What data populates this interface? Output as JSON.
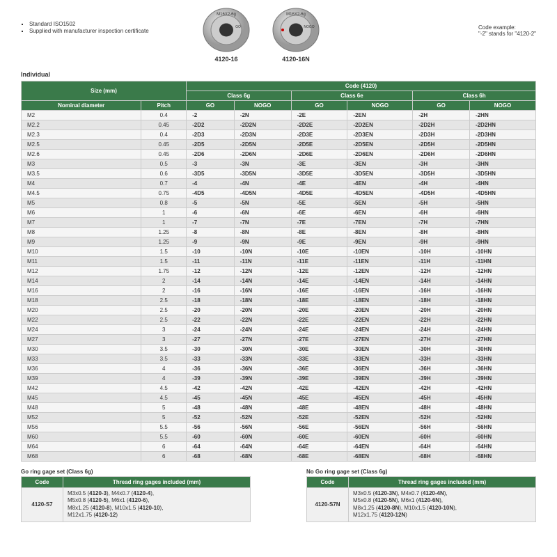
{
  "notes": [
    "Standard ISO1502",
    "Supplied with manufacturer inspection certificate"
  ],
  "gauges": [
    {
      "top": "M16X2-6g",
      "side": "GO",
      "label": "4120-16"
    },
    {
      "top": "M16X2-6g",
      "side": "NOGO",
      "label": "4120-16N"
    }
  ],
  "code_example": {
    "line1": "Code example:",
    "line2": "\"-2\" stands for \"4120-2\""
  },
  "section_title": "Individual",
  "header": {
    "size": "Size (mm)",
    "code": "Code (4120)",
    "classes": [
      "Class 6g",
      "Class 6e",
      "Class 6h"
    ],
    "nominal": "Nominal diameter",
    "pitch": "Pitch",
    "go": "GO",
    "nogo": "NOGO"
  },
  "colors": {
    "header_bg": "#3a7a4a",
    "header_fg": "#ffffff"
  },
  "rows": [
    [
      "M2",
      "0.4",
      "-2",
      "-2N",
      "-2E",
      "-2EN",
      "-2H",
      "-2HN"
    ],
    [
      "M2.2",
      "0.45",
      "-2D2",
      "-2D2N",
      "-2D2E",
      "-2D2EN",
      "-2D2H",
      "-2D2HN"
    ],
    [
      "M2.3",
      "0.4",
      "-2D3",
      "-2D3N",
      "-2D3E",
      "-2D3EN",
      "-2D3H",
      "-2D3HN"
    ],
    [
      "M2.5",
      "0.45",
      "-2D5",
      "-2D5N",
      "-2D5E",
      "-2D5EN",
      "-2D5H",
      "-2D5HN"
    ],
    [
      "M2.6",
      "0.45",
      "-2D6",
      "-2D6N",
      "-2D6E",
      "-2D6EN",
      "-2D6H",
      "-2D6HN"
    ],
    [
      "M3",
      "0.5",
      "-3",
      "-3N",
      "-3E",
      "-3EN",
      "-3H",
      "-3HN"
    ],
    [
      "M3.5",
      "0.6",
      "-3D5",
      "-3D5N",
      "-3D5E",
      "-3D5EN",
      "-3D5H",
      "-3D5HN"
    ],
    [
      "M4",
      "0.7",
      "-4",
      "-4N",
      "-4E",
      "-4EN",
      "-4H",
      "-4HN"
    ],
    [
      "M4.5",
      "0.75",
      "-4D5",
      "-4D5N",
      "-4D5E",
      "-4D5EN",
      "-4D5H",
      "-4D5HN"
    ],
    [
      "M5",
      "0.8",
      "-5",
      "-5N",
      "-5E",
      "-5EN",
      "-5H",
      "-5HN"
    ],
    [
      "M6",
      "1",
      "-6",
      "-6N",
      "-6E",
      "-6EN",
      "-6H",
      "-6HN"
    ],
    [
      "M7",
      "1",
      "-7",
      "-7N",
      "-7E",
      "-7EN",
      "-7H",
      "-7HN"
    ],
    [
      "M8",
      "1.25",
      "-8",
      "-8N",
      "-8E",
      "-8EN",
      "-8H",
      "-8HN"
    ],
    [
      "M9",
      "1.25",
      "-9",
      "-9N",
      "-9E",
      "-9EN",
      "-9H",
      "-9HN"
    ],
    [
      "M10",
      "1.5",
      "-10",
      "-10N",
      "-10E",
      "-10EN",
      "-10H",
      "-10HN"
    ],
    [
      "M11",
      "1.5",
      "-11",
      "-11N",
      "-11E",
      "-11EN",
      "-11H",
      "-11HN"
    ],
    [
      "M12",
      "1.75",
      "-12",
      "-12N",
      "-12E",
      "-12EN",
      "-12H",
      "-12HN"
    ],
    [
      "M14",
      "2",
      "-14",
      "-14N",
      "-14E",
      "-14EN",
      "-14H",
      "-14HN"
    ],
    [
      "M16",
      "2",
      "-16",
      "-16N",
      "-16E",
      "-16EN",
      "-16H",
      "-16HN"
    ],
    [
      "M18",
      "2.5",
      "-18",
      "-18N",
      "-18E",
      "-18EN",
      "-18H",
      "-18HN"
    ],
    [
      "M20",
      "2.5",
      "-20",
      "-20N",
      "-20E",
      "-20EN",
      "-20H",
      "-20HN"
    ],
    [
      "M22",
      "2.5",
      "-22",
      "-22N",
      "-22E",
      "-22EN",
      "-22H",
      "-22HN"
    ],
    [
      "M24",
      "3",
      "-24",
      "-24N",
      "-24E",
      "-24EN",
      "-24H",
      "-24HN"
    ],
    [
      "M27",
      "3",
      "-27",
      "-27N",
      "-27E",
      "-27EN",
      "-27H",
      "-27HN"
    ],
    [
      "M30",
      "3.5",
      "-30",
      "-30N",
      "-30E",
      "-30EN",
      "-30H",
      "-30HN"
    ],
    [
      "M33",
      "3.5",
      "-33",
      "-33N",
      "-33E",
      "-33EN",
      "-33H",
      "-33HN"
    ],
    [
      "M36",
      "4",
      "-36",
      "-36N",
      "-36E",
      "-36EN",
      "-36H",
      "-36HN"
    ],
    [
      "M39",
      "4",
      "-39",
      "-39N",
      "-39E",
      "-39EN",
      "-39H",
      "-39HN"
    ],
    [
      "M42",
      "4.5",
      "-42",
      "-42N",
      "-42E",
      "-42EN",
      "-42H",
      "-42HN"
    ],
    [
      "M45",
      "4.5",
      "-45",
      "-45N",
      "-45E",
      "-45EN",
      "-45H",
      "-45HN"
    ],
    [
      "M48",
      "5",
      "-48",
      "-48N",
      "-48E",
      "-48EN",
      "-48H",
      "-48HN"
    ],
    [
      "M52",
      "5",
      "-52",
      "-52N",
      "-52E",
      "-52EN",
      "-52H",
      "-52HN"
    ],
    [
      "M56",
      "5.5",
      "-56",
      "-56N",
      "-56E",
      "-56EN",
      "-56H",
      "-56HN"
    ],
    [
      "M60",
      "5.5",
      "-60",
      "-60N",
      "-60E",
      "-60EN",
      "-60H",
      "-60HN"
    ],
    [
      "M64",
      "6",
      "-64",
      "-64N",
      "-64E",
      "-64EN",
      "-64H",
      "-64HN"
    ],
    [
      "M68",
      "6",
      "-68",
      "-68N",
      "-68E",
      "-68EN",
      "-68H",
      "-68HN"
    ]
  ],
  "go_set": {
    "title": "Go ring gage set (Class 6g)",
    "code_hdr": "Code",
    "incl_hdr": "Thread ring gages included (mm)",
    "code": "4120-S7",
    "incl": "M3x0.5 (<b>4120-3</b>), M4x0.7 (<b>4120-4</b>),<br>M5x0.8 (<b>4120-5</b>), M6x1 (<b>4120-6</b>),<br>M8x1.25 (<b>4120-8</b>), M10x1.5 (<b>4120-10</b>),<br>M12x1.75 (<b>4120-12</b>)"
  },
  "nogo_set": {
    "title": "No Go ring gage set (Class 6g)",
    "code_hdr": "Code",
    "incl_hdr": "Thread ring gages included (mm)",
    "code": "4120-S7N",
    "incl": "M3x0.5 (<b>4120-3N</b>), M4x0.7 (<b>4120-4N</b>),<br>M5x0.8 (<b>4120-5N</b>), M6x1 (<b>4120-6N</b>),<br>M8x1.25 (<b>4120-8N</b>), M10x1.5 (<b>4120-10N</b>),<br>M12x1.75 (<b>4120-12N</b>)"
  }
}
